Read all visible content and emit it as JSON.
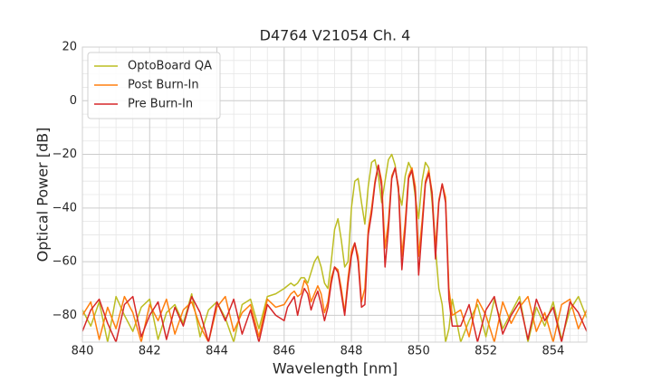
{
  "chart_data": {
    "type": "line",
    "title": "D4764 V21054 Ch. 4",
    "x_label": "Wavelength [nm]",
    "y_label": "Optical Power [dB]",
    "xlim": [
      840,
      855
    ],
    "ylim": [
      -90,
      20
    ],
    "xticks": [
      840,
      842,
      844,
      846,
      848,
      850,
      852,
      854
    ],
    "yticks": [
      {
        "value": -80,
        "label": "−80"
      },
      {
        "value": -60,
        "label": "−60"
      },
      {
        "value": -40,
        "label": "−40"
      },
      {
        "value": -20,
        "label": "−20"
      },
      0,
      20
    ],
    "grid": true,
    "legend": "upper left",
    "x": [
      840,
      840.25,
      840.5,
      840.75,
      841,
      841.25,
      841.5,
      841.75,
      842,
      842.25,
      842.5,
      842.75,
      843,
      843.25,
      843.5,
      843.75,
      844,
      844.25,
      844.5,
      844.75,
      845,
      845.25,
      845.5,
      845.75,
      846,
      846.1,
      846.2,
      846.3,
      846.4,
      846.5,
      846.6,
      846.7,
      846.8,
      846.9,
      847,
      847.1,
      847.2,
      847.3,
      847.4,
      847.5,
      847.6,
      847.7,
      847.8,
      847.9,
      848,
      848.1,
      848.2,
      848.3,
      848.4,
      848.5,
      848.6,
      848.7,
      848.8,
      848.9,
      849,
      849.1,
      849.2,
      849.3,
      849.4,
      849.5,
      849.6,
      849.7,
      849.8,
      849.9,
      850,
      850.1,
      850.2,
      850.3,
      850.4,
      850.5,
      850.6,
      850.7,
      850.8,
      850.9,
      851,
      851.25,
      851.5,
      851.75,
      852,
      852.25,
      852.5,
      852.75,
      853,
      853.25,
      853.5,
      853.75,
      854,
      854.25,
      854.5,
      854.75,
      855
    ],
    "series": [
      {
        "name": "OptoBoard QA",
        "color": "#bcbd22",
        "values": [
          -78,
          -84,
          -75,
          -90,
          -73,
          -80,
          -86,
          -77,
          -74,
          -89,
          -79,
          -76,
          -83,
          -72,
          -88,
          -78,
          -75,
          -81,
          -90,
          -76,
          -74,
          -85,
          -73,
          -72,
          -70,
          -69,
          -68,
          -69,
          -68,
          -66,
          -66,
          -68,
          -64,
          -60,
          -58,
          -62,
          -68,
          -70,
          -60,
          -48,
          -44,
          -52,
          -62,
          -60,
          -40,
          -30,
          -29,
          -38,
          -46,
          -32,
          -23,
          -22,
          -28,
          -38,
          -30,
          -22,
          -20,
          -24,
          -34,
          -39,
          -28,
          -23,
          -26,
          -36,
          -44,
          -30,
          -23,
          -25,
          -38,
          -55,
          -70,
          -76,
          -90,
          -85,
          -74,
          -90,
          -82,
          -76,
          -88,
          -74,
          -85,
          -79,
          -73,
          -90,
          -77,
          -84,
          -75,
          -89,
          -78,
          -73,
          -81
        ]
      },
      {
        "name": "Post Burn-In",
        "color": "#ff7f0e",
        "values": [
          -80,
          -75,
          -89,
          -77,
          -85,
          -73,
          -79,
          -90,
          -76,
          -82,
          -74,
          -87,
          -78,
          -75,
          -84,
          -90,
          -77,
          -73,
          -86,
          -79,
          -76,
          -88,
          -74,
          -77,
          -76,
          -74,
          -72,
          -71,
          -73,
          -72,
          -67,
          -69,
          -75,
          -72,
          -69,
          -72,
          -79,
          -75,
          -66,
          -62,
          -63,
          -70,
          -79,
          -66,
          -56,
          -53,
          -58,
          -75,
          -70,
          -48,
          -40,
          -30,
          -24,
          -30,
          -55,
          -45,
          -28,
          -25,
          -32,
          -58,
          -45,
          -28,
          -25,
          -32,
          -58,
          -45,
          -30,
          -26,
          -34,
          -55,
          -37,
          -31,
          -36,
          -70,
          -80,
          -78,
          -88,
          -74,
          -80,
          -90,
          -75,
          -83,
          -77,
          -73,
          -86,
          -79,
          -90,
          -76,
          -74,
          -85,
          -78
        ]
      },
      {
        "name": "Pre Burn-In",
        "color": "#d62728",
        "values": [
          -86,
          -78,
          -74,
          -83,
          -90,
          -76,
          -73,
          -88,
          -80,
          -75,
          -89,
          -77,
          -84,
          -73,
          -79,
          -90,
          -75,
          -82,
          -74,
          -87,
          -78,
          -90,
          -76,
          -80,
          -82,
          -77,
          -75,
          -73,
          -80,
          -74,
          -70,
          -72,
          -78,
          -74,
          -71,
          -76,
          -82,
          -77,
          -68,
          -62,
          -64,
          -72,
          -80,
          -68,
          -58,
          -53,
          -60,
          -77,
          -76,
          -50,
          -42,
          -31,
          -24,
          -32,
          -62,
          -48,
          -29,
          -25,
          -33,
          -63,
          -48,
          -29,
          -26,
          -34,
          -65,
          -48,
          -31,
          -27,
          -35,
          -59,
          -38,
          -31,
          -38,
          -74,
          -84,
          -84,
          -76,
          -90,
          -78,
          -73,
          -87,
          -80,
          -75,
          -89,
          -74,
          -82,
          -77,
          -90,
          -75,
          -79,
          -86
        ]
      }
    ]
  }
}
